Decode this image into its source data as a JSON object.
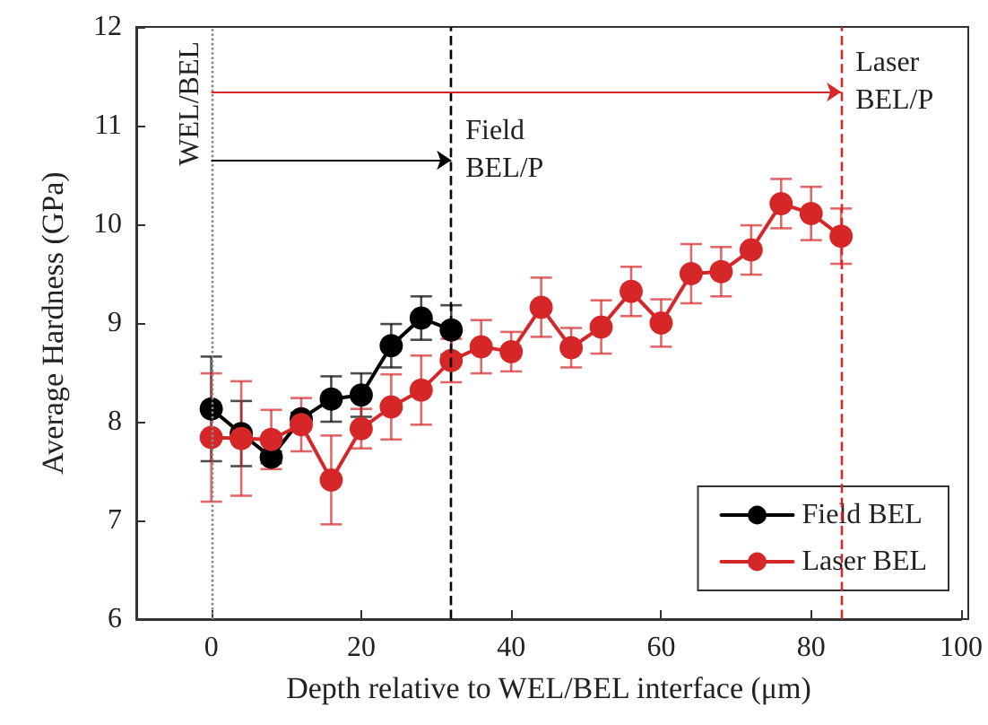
{
  "chart_data": {
    "type": "line",
    "xlabel": "Depth relative to WEL/BEL interface (μm)",
    "ylabel": "Average Hardness (GPa)",
    "xlim": [
      -10,
      100
    ],
    "xticks": [
      0,
      20,
      40,
      60,
      80,
      100
    ],
    "ylim": [
      6,
      12
    ],
    "yticks": [
      6,
      7,
      8,
      9,
      10,
      11,
      12
    ],
    "grid": false,
    "legend": "bottom right",
    "marker": "circle",
    "line_style": "solid",
    "series": [
      {
        "name": "Field BEL",
        "color": "#000000",
        "x": [
          0,
          4,
          8,
          12,
          16,
          20,
          24,
          28,
          32
        ],
        "values": [
          8.13,
          7.88,
          7.64,
          8.03,
          8.23,
          8.27,
          8.77,
          9.05,
          8.93
        ],
        "errors": [
          0.53,
          0.33,
          0.06,
          0.06,
          0.23,
          0.22,
          0.22,
          0.22,
          0.25
        ]
      },
      {
        "name": "Laser BEL",
        "color": "#d62728",
        "x": [
          0,
          4,
          8,
          12,
          16,
          20,
          24,
          28,
          32,
          36,
          40,
          44,
          48,
          52,
          56,
          60,
          64,
          68,
          72,
          76,
          80,
          84
        ],
        "values": [
          7.84,
          7.83,
          7.82,
          7.97,
          7.41,
          7.93,
          8.15,
          8.32,
          8.62,
          8.76,
          8.71,
          9.16,
          8.75,
          8.96,
          9.32,
          9.0,
          9.5,
          9.52,
          9.74,
          10.21,
          10.11,
          9.88
        ],
        "errors": [
          0.65,
          0.58,
          0.3,
          0.27,
          0.45,
          0.2,
          0.33,
          0.35,
          0.22,
          0.27,
          0.2,
          0.3,
          0.2,
          0.27,
          0.25,
          0.24,
          0.3,
          0.25,
          0.25,
          0.25,
          0.27,
          0.28
        ]
      }
    ],
    "ref_lines": [
      {
        "axis": "x",
        "value": 0,
        "label": "WEL/BEL",
        "color": "#888888",
        "line_style": "dotted"
      },
      {
        "axis": "x",
        "value": 32,
        "label": "Field\nBEL/P",
        "color": "#000000",
        "line_style": "dashed"
      },
      {
        "axis": "x",
        "value": 84,
        "label": "Laser\nBEL/P",
        "color": "#d62728",
        "line_style": "dashed"
      }
    ]
  }
}
